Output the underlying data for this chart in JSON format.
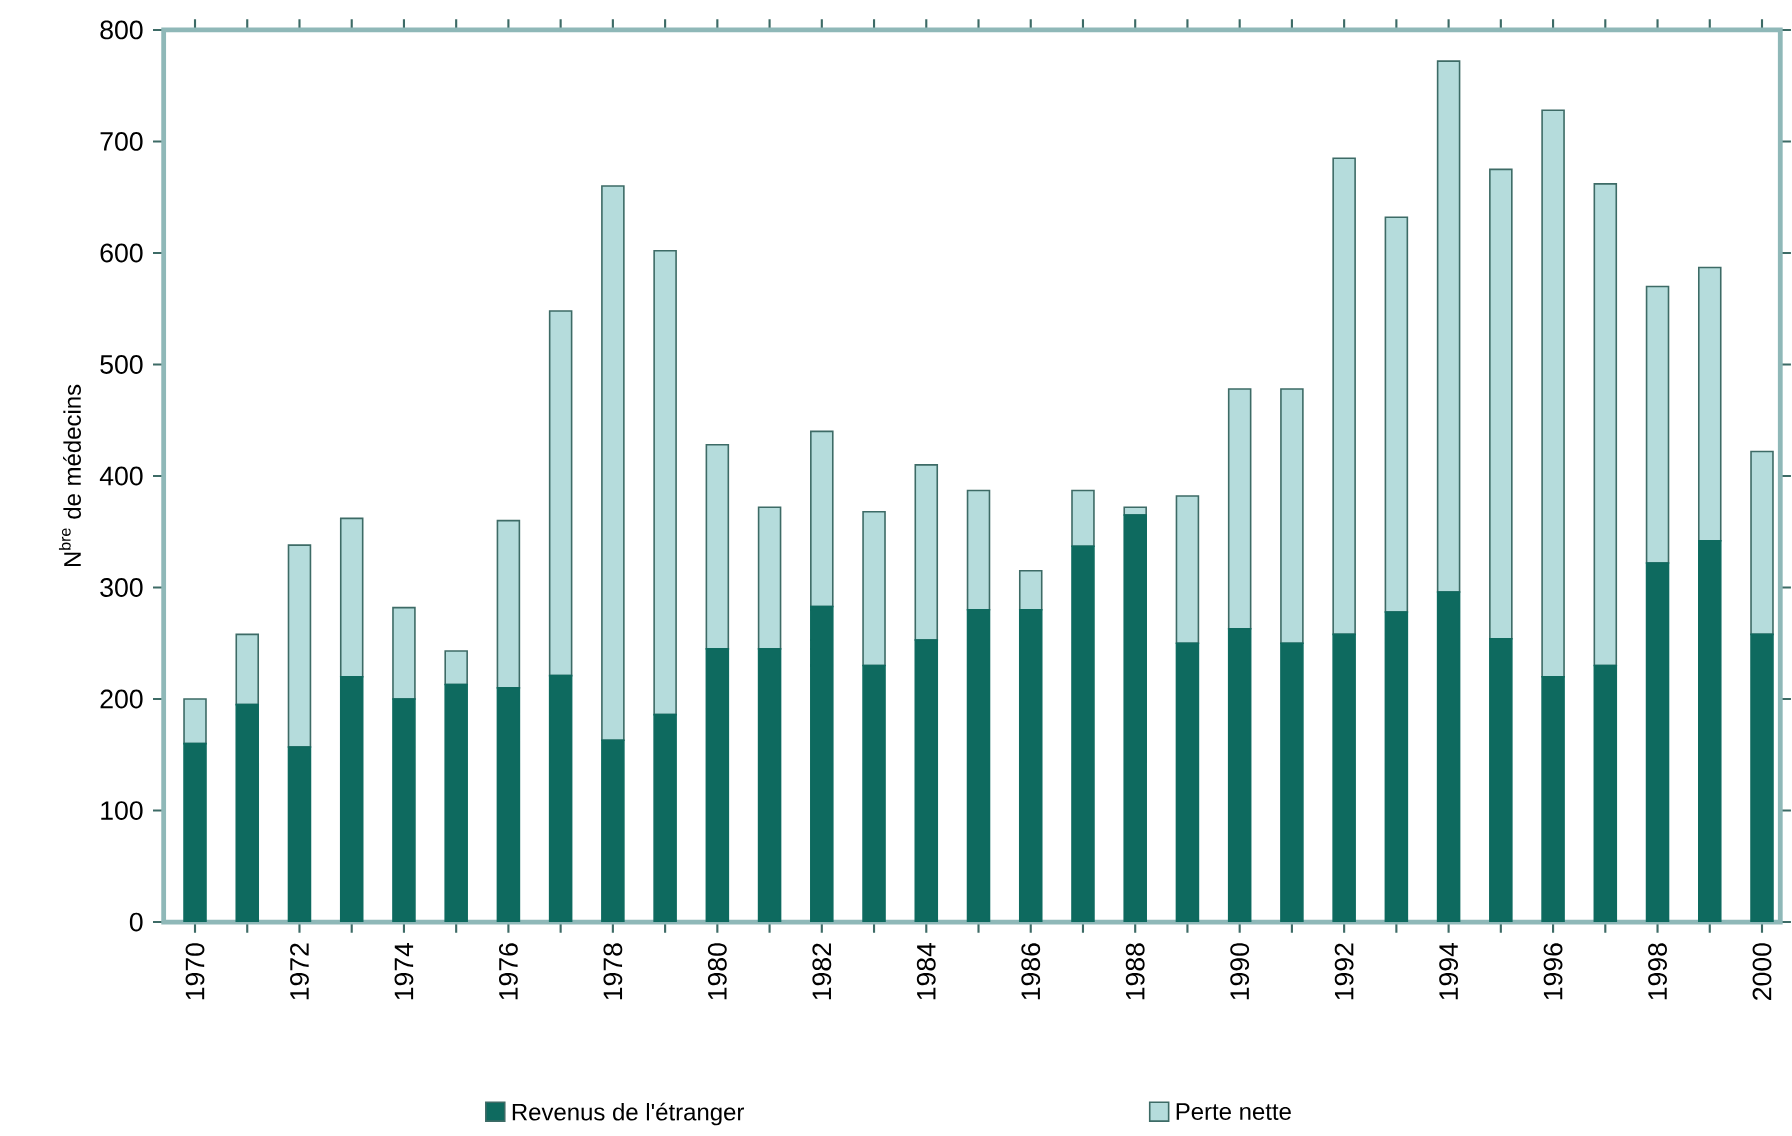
{
  "chart_data": {
    "type": "bar",
    "stacked": true,
    "ylabel": "N$^{bre}$ de médecins",
    "categories": [
      "1970",
      null,
      "1972",
      null,
      "1974",
      null,
      "1976",
      null,
      "1978",
      null,
      "1980",
      null,
      "1982",
      null,
      "1984",
      null,
      "1986",
      null,
      "1988",
      null,
      "1990",
      null,
      "1992",
      null,
      "1994",
      null,
      "1996",
      null,
      "1998",
      null,
      "2000"
    ],
    "series": [
      {
        "name": "Revenus de l'étranger",
        "color": "#0e6a5f",
        "values": [
          160,
          195,
          157,
          220,
          200,
          213,
          210,
          221,
          163,
          186,
          245,
          245,
          283,
          230,
          253,
          280,
          280,
          337,
          365,
          250,
          263,
          250,
          258,
          278,
          296,
          254,
          220,
          230,
          322,
          342,
          258
        ]
      },
      {
        "name": "Perte nette",
        "color": "#b5dcdc",
        "values": [
          40,
          63,
          181,
          142,
          82,
          30,
          150,
          327,
          497,
          416,
          183,
          127,
          157,
          138,
          157,
          107,
          35,
          50,
          7,
          132,
          215,
          228,
          427,
          354,
          476,
          421,
          508,
          432,
          248,
          245,
          164
        ]
      }
    ],
    "ylim": [
      0,
      800
    ],
    "yticks": [
      0,
      100,
      200,
      300,
      400,
      500,
      600,
      700,
      800
    ],
    "legend": "bottom",
    "grid": false
  }
}
